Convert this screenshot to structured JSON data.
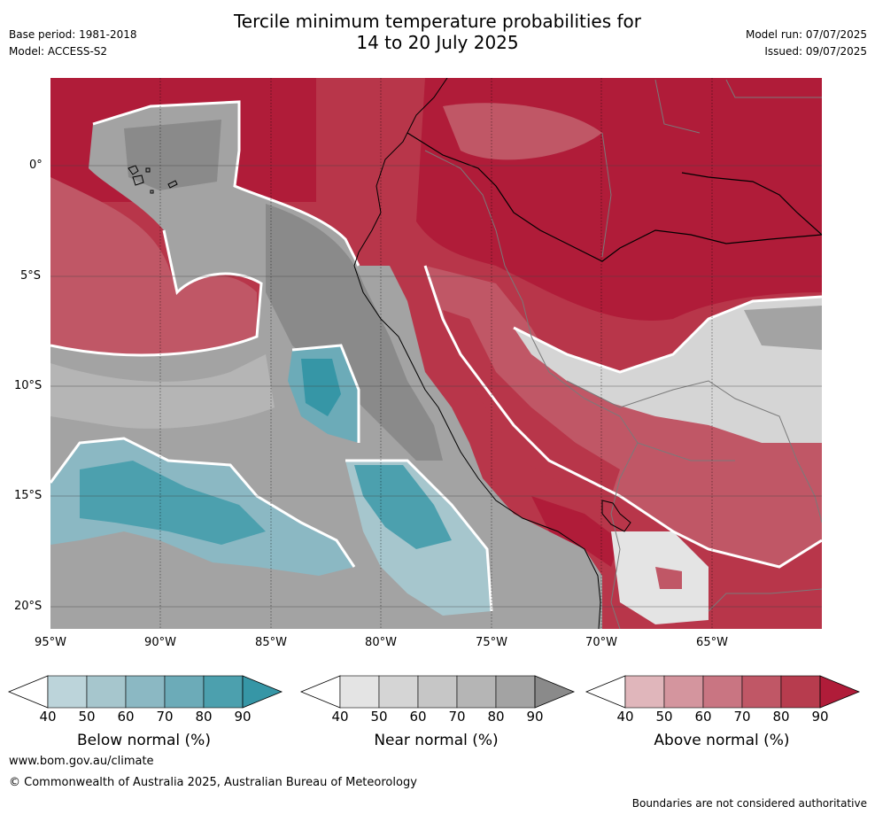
{
  "header": {
    "title_line1": "Tercile minimum temperature probabilities for",
    "title_line2": "14 to 20 July 2025",
    "base_period": "Base period: 1981-2018",
    "model": "Model: ACCESS-S2",
    "model_run": "Model run: 07/07/2025",
    "issued": "Issued: 09/07/2025"
  },
  "map": {
    "lat_labels": [
      "0°",
      "5°S",
      "10°S",
      "15°S",
      "20°S"
    ],
    "lon_labels": [
      "95°W",
      "90°W",
      "85°W",
      "80°W",
      "75°W",
      "70°W",
      "65°W"
    ]
  },
  "colorbars": [
    {
      "label": "Below normal (%)",
      "ticks": [
        "40",
        "50",
        "60",
        "70",
        "80",
        "90"
      ],
      "colors": [
        "#bcd4da",
        "#a6c6cd",
        "#8bb8c3",
        "#6cabb8",
        "#4ca0ae",
        "#3696a6"
      ]
    },
    {
      "label": "Near normal (%)",
      "ticks": [
        "40",
        "50",
        "60",
        "70",
        "80",
        "90"
      ],
      "colors": [
        "#e4e4e4",
        "#d5d5d5",
        "#c6c6c6",
        "#b5b5b5",
        "#a3a3a3",
        "#8a8a8a"
      ]
    },
    {
      "label": "Above normal (%)",
      "ticks": [
        "40",
        "50",
        "60",
        "70",
        "80",
        "90"
      ],
      "colors": [
        "#e0b6bb",
        "#d4959e",
        "#c97582",
        "#c05766",
        "#b73c4e",
        "#b01c39"
      ]
    }
  ],
  "footer": {
    "website": "www.bom.gov.au/climate",
    "copyright": "© Commonwealth of Australia 2025, Australian Bureau of Meteorology",
    "disclaimer": "Boundaries are not considered authoritative"
  }
}
